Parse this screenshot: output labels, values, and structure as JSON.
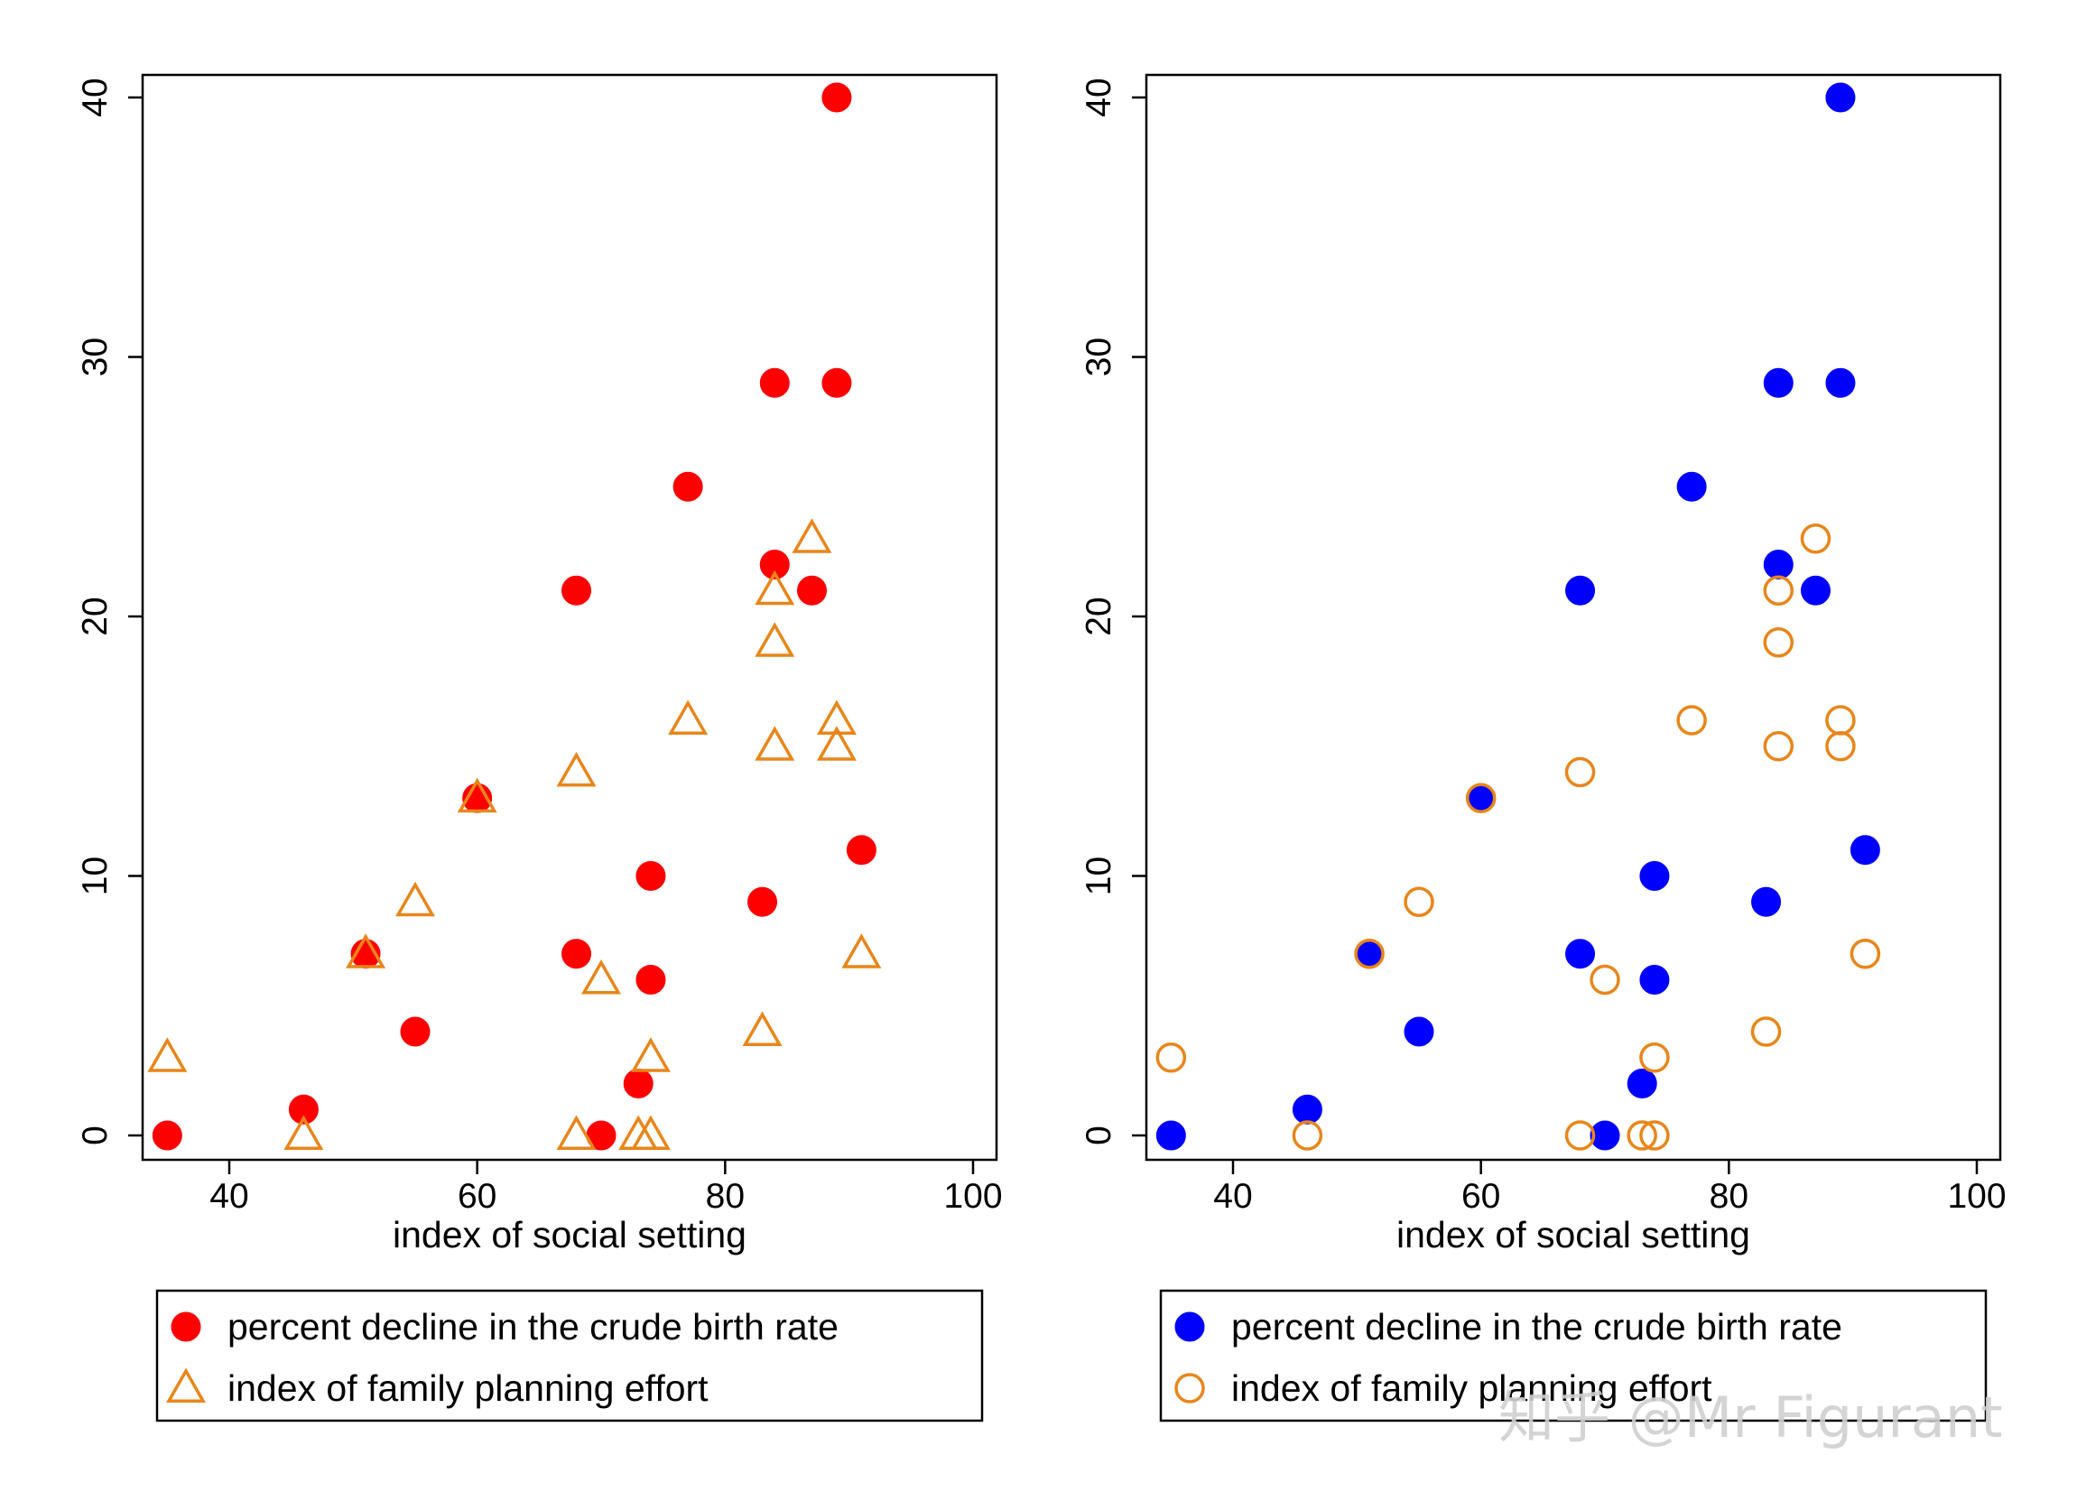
{
  "chart_data": [
    {
      "type": "scatter",
      "title": "",
      "xlabel": "index of social setting",
      "ylabel": "",
      "xlim": [
        33,
        102
      ],
      "ylim": [
        -1,
        41
      ],
      "xticks": [
        40,
        60,
        80,
        100
      ],
      "yticks": [
        0,
        10,
        20,
        30,
        40
      ],
      "grid": false,
      "legend_position": "bottom",
      "series": [
        {
          "name": "percent decline in the crude birth rate",
          "marker": "filled-circle",
          "color": "#ff0000",
          "points": [
            [
              35,
              0
            ],
            [
              46,
              1
            ],
            [
              51,
              7
            ],
            [
              55,
              4
            ],
            [
              60,
              13
            ],
            [
              68,
              21
            ],
            [
              68,
              7
            ],
            [
              70,
              0
            ],
            [
              73,
              2
            ],
            [
              74,
              10
            ],
            [
              74,
              6
            ],
            [
              77,
              25
            ],
            [
              83,
              9
            ],
            [
              84,
              29
            ],
            [
              84,
              22
            ],
            [
              87,
              21
            ],
            [
              89,
              40
            ],
            [
              89,
              29
            ],
            [
              91,
              11
            ]
          ]
        },
        {
          "name": "index of family planning effort",
          "marker": "hollow-triangle",
          "color": "#e8861a",
          "points": [
            [
              35,
              3
            ],
            [
              46,
              0
            ],
            [
              51,
              7
            ],
            [
              55,
              9
            ],
            [
              60,
              13
            ],
            [
              68,
              14
            ],
            [
              68,
              0
            ],
            [
              70,
              6
            ],
            [
              73,
              0
            ],
            [
              74,
              3
            ],
            [
              74,
              0
            ],
            [
              77,
              16
            ],
            [
              83,
              4
            ],
            [
              84,
              21
            ],
            [
              84,
              19
            ],
            [
              84,
              15
            ],
            [
              87,
              23
            ],
            [
              89,
              16
            ],
            [
              89,
              15
            ],
            [
              91,
              7
            ]
          ]
        }
      ]
    },
    {
      "type": "scatter",
      "title": "",
      "xlabel": "index of social setting",
      "ylabel": "",
      "xlim": [
        33,
        102
      ],
      "ylim": [
        -1,
        41
      ],
      "xticks": [
        40,
        60,
        80,
        100
      ],
      "yticks": [
        0,
        10,
        20,
        30,
        40
      ],
      "grid": false,
      "legend_position": "bottom",
      "series": [
        {
          "name": "percent decline in the crude birth rate",
          "marker": "filled-circle",
          "color": "#0000ff",
          "points": [
            [
              35,
              0
            ],
            [
              46,
              1
            ],
            [
              51,
              7
            ],
            [
              55,
              4
            ],
            [
              60,
              13
            ],
            [
              68,
              21
            ],
            [
              68,
              7
            ],
            [
              70,
              0
            ],
            [
              73,
              2
            ],
            [
              74,
              10
            ],
            [
              74,
              6
            ],
            [
              77,
              25
            ],
            [
              83,
              9
            ],
            [
              84,
              29
            ],
            [
              84,
              22
            ],
            [
              87,
              21
            ],
            [
              89,
              40
            ],
            [
              89,
              29
            ],
            [
              91,
              11
            ]
          ]
        },
        {
          "name": "index of family planning effort",
          "marker": "hollow-circle",
          "color": "#e8861a",
          "points": [
            [
              35,
              3
            ],
            [
              46,
              0
            ],
            [
              51,
              7
            ],
            [
              55,
              9
            ],
            [
              60,
              13
            ],
            [
              68,
              14
            ],
            [
              68,
              0
            ],
            [
              70,
              6
            ],
            [
              73,
              0
            ],
            [
              74,
              3
            ],
            [
              74,
              0
            ],
            [
              77,
              16
            ],
            [
              83,
              4
            ],
            [
              84,
              21
            ],
            [
              84,
              19
            ],
            [
              84,
              15
            ],
            [
              87,
              23
            ],
            [
              89,
              16
            ],
            [
              89,
              15
            ],
            [
              91,
              7
            ]
          ]
        }
      ]
    }
  ],
  "watermark": "知乎 @Mr Figurant"
}
